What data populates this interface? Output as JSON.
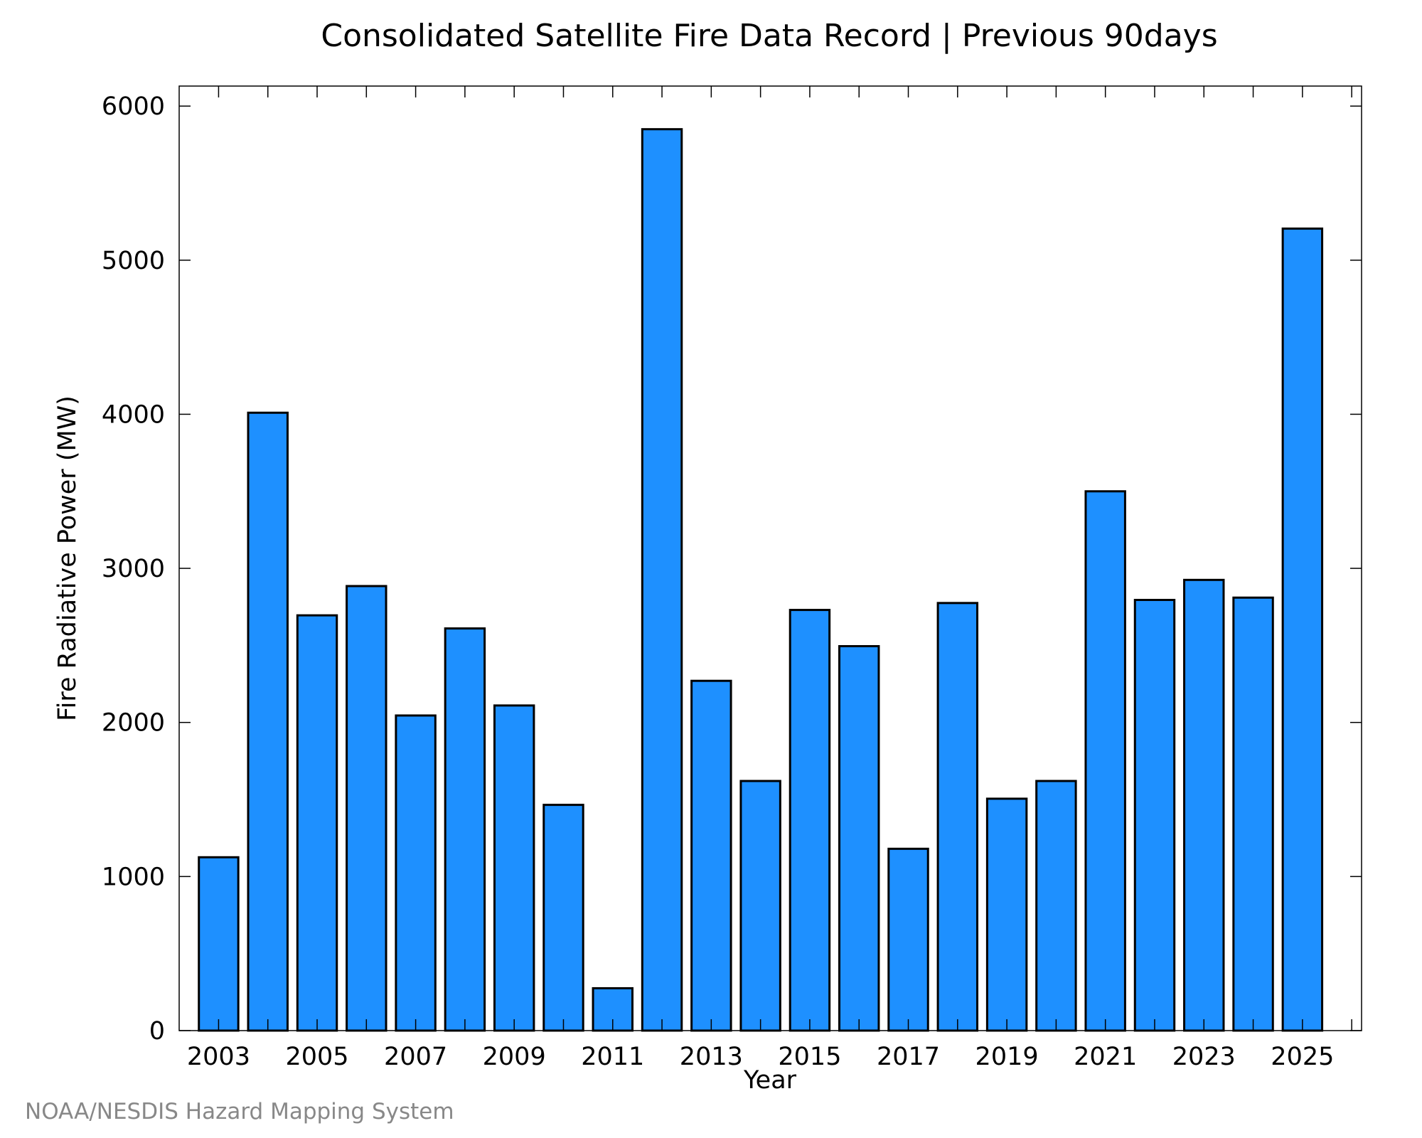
{
  "chart_data": {
    "type": "bar",
    "title": "Consolidated Satellite Fire Data Record | Previous 90days",
    "xlabel": "Year",
    "ylabel": "Fire Radiative Power (MW)",
    "ylim": [
      0,
      6130
    ],
    "xlim": [
      2002.2,
      2026.2
    ],
    "categories": [
      2003,
      2004,
      2005,
      2006,
      2007,
      2008,
      2009,
      2010,
      2011,
      2012,
      2013,
      2014,
      2015,
      2016,
      2017,
      2018,
      2019,
      2020,
      2021,
      2022,
      2023,
      2024,
      2025
    ],
    "values": [
      1125,
      4010,
      2695,
      2885,
      2045,
      2610,
      2110,
      1465,
      275,
      5850,
      2270,
      1620,
      2730,
      2495,
      1180,
      2775,
      1505,
      1620,
      3500,
      2795,
      2925,
      2810,
      5205
    ],
    "x_ticks": [
      "2003",
      "2005",
      "2007",
      "2009",
      "2011",
      "2013",
      "2015",
      "2017",
      "2019",
      "2021",
      "2023",
      "2025"
    ],
    "y_ticks": [
      "0",
      "1000",
      "2000",
      "3000",
      "4000",
      "5000",
      "6000"
    ],
    "grid": false,
    "bar_color": "#1E90FF",
    "edge_color": "#000000"
  },
  "credit": "NOAA/NESDIS Hazard Mapping System"
}
